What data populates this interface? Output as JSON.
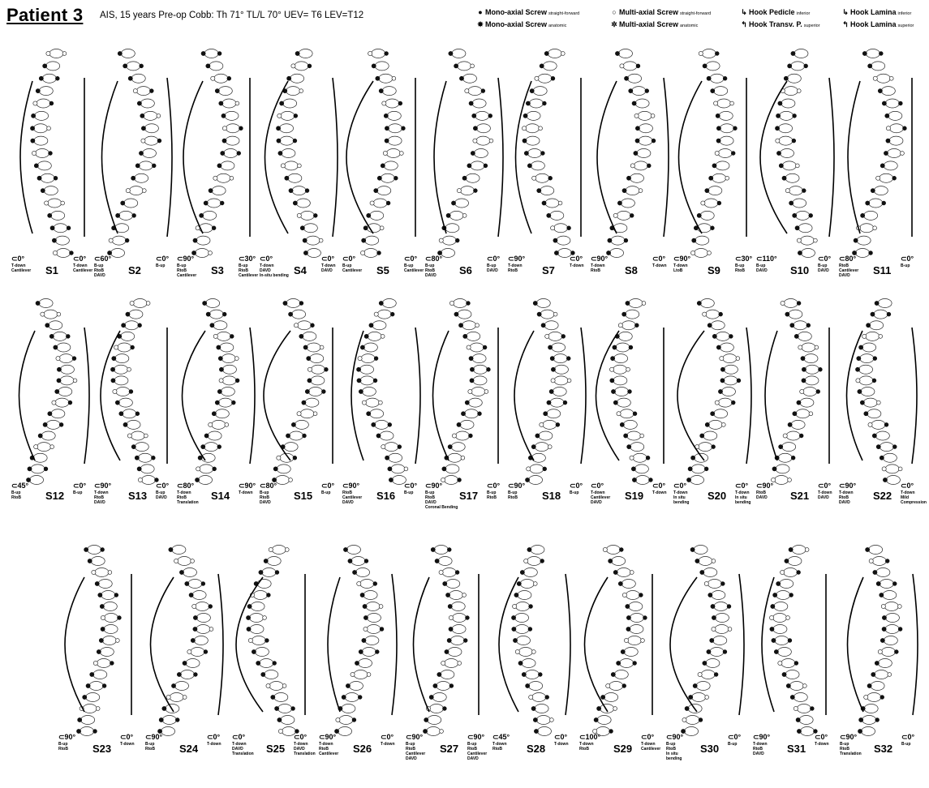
{
  "header": {
    "title": "Patient 3",
    "subtitle": "AIS, 15 years Pre-op Cobb: Th 71° TL/L 70°  UEV= T6  LEV=T12"
  },
  "legend": [
    {
      "icon": "●",
      "icon_name": "mono-axial-screw-straight-icon",
      "label": "Mono-axial Screw",
      "sub": "straight-forward"
    },
    {
      "icon": "○",
      "icon_name": "multi-axial-screw-straight-icon",
      "label": "Multi-axial Screw",
      "sub": "straight-forward"
    },
    {
      "icon": "↳",
      "icon_name": "hook-pedicle-icon",
      "label": "Hook Pedicle",
      "sub": "inferior"
    },
    {
      "icon": "↳",
      "icon_name": "hook-lamina-inferior-icon",
      "label": "Hook Lamina",
      "sub": "inferior"
    },
    {
      "icon": "✸",
      "icon_name": "mono-axial-screw-anatomic-icon",
      "label": "Mono-axial Screw",
      "sub": "anatomic"
    },
    {
      "icon": "✲",
      "icon_name": "multi-axial-screw-anatomic-icon",
      "label": "Multi-axial Screw",
      "sub": "anatomic"
    },
    {
      "icon": "↰",
      "icon_name": "hook-transverse-process-icon",
      "label": "Hook Transv. P.",
      "sub": "superior"
    },
    {
      "icon": "↰",
      "icon_name": "hook-lamina-superior-icon",
      "label": "Hook Lamina",
      "sub": "superior"
    }
  ],
  "strategies": [
    {
      "label": "S1",
      "left": {
        "angle": "0°",
        "moves": [
          "T-down",
          "Cantilever"
        ]
      },
      "right": {
        "angle": "0°",
        "moves": [
          "T-down",
          "Cantilever"
        ]
      }
    },
    {
      "label": "S2",
      "left": {
        "angle": "60°",
        "moves": [
          "B-up",
          "RtoB",
          "DAVD"
        ]
      },
      "right": {
        "angle": "0°",
        "moves": [
          "B-up"
        ]
      }
    },
    {
      "label": "S3",
      "left": {
        "angle": "90°",
        "moves": [
          "B-up",
          "RtoB",
          "Cantilever"
        ]
      },
      "right": {
        "angle": "30°",
        "moves": [
          "B-up",
          "RtoB",
          "Cantilever"
        ]
      }
    },
    {
      "label": "S4",
      "left": {
        "angle": "0°",
        "moves": [
          "T-down",
          "DAVD",
          "In-situ bending"
        ]
      },
      "right": {
        "angle": "0°",
        "moves": [
          "T-down",
          "DAVD"
        ]
      }
    },
    {
      "label": "S5",
      "left": {
        "angle": "0°",
        "moves": [
          "B-up",
          "Cantilever"
        ]
      },
      "right": {
        "angle": "0°",
        "moves": [
          "B-up",
          "Cantilever"
        ]
      }
    },
    {
      "label": "S6",
      "left": {
        "angle": "80°",
        "moves": [
          "B-up",
          "RtoB",
          "DAVD"
        ]
      },
      "right": {
        "angle": "0°",
        "moves": [
          "B-up",
          "DAVD"
        ]
      }
    },
    {
      "label": "S7",
      "left": {
        "angle": "90°",
        "moves": [
          "T-down",
          "RtoB"
        ]
      },
      "right": {
        "angle": "0°",
        "moves": [
          "T-down"
        ]
      }
    },
    {
      "label": "S8",
      "left": {
        "angle": "90°",
        "moves": [
          "T-down",
          "RtoB"
        ]
      },
      "right": {
        "angle": "0°",
        "moves": [
          "T-down"
        ]
      }
    },
    {
      "label": "S9",
      "left": {
        "angle": "90°",
        "moves": [
          "T-down",
          "LtoB"
        ]
      },
      "right": {
        "angle": "30°",
        "moves": [
          "B-up",
          "RtoB"
        ]
      }
    },
    {
      "label": "S10",
      "left": {
        "angle": "110°",
        "moves": [
          "B-up",
          "DAVD"
        ]
      },
      "right": {
        "angle": "0°",
        "moves": [
          "B-up",
          "DAVD"
        ]
      }
    },
    {
      "label": "S11",
      "left": {
        "angle": "80°",
        "moves": [
          "RtoB",
          "Cantilever",
          "DAVD"
        ]
      },
      "right": {
        "angle": "0°",
        "moves": [
          "B-up"
        ]
      }
    },
    {
      "label": "S12",
      "left": {
        "angle": "45°",
        "moves": [
          "B-up",
          "RtoB"
        ]
      },
      "right": {
        "angle": "0°",
        "moves": [
          "B-up"
        ]
      }
    },
    {
      "label": "S13",
      "left": {
        "angle": "90°",
        "moves": [
          "T-down",
          "RtoB",
          "DAVD"
        ]
      },
      "right": {
        "angle": "0°",
        "moves": [
          "B-up",
          "DAVD"
        ]
      }
    },
    {
      "label": "S14",
      "left": {
        "angle": "80°",
        "moves": [
          "T-down",
          "RtoB",
          "Translation"
        ]
      },
      "right": {
        "angle": "90°",
        "moves": [
          "T-down"
        ]
      }
    },
    {
      "label": "S15",
      "left": {
        "angle": "80°",
        "moves": [
          "B-up",
          "RtoB",
          "DAVD"
        ]
      },
      "right": {
        "angle": "0°",
        "moves": [
          "B-up"
        ]
      }
    },
    {
      "label": "S16",
      "left": {
        "angle": "90°",
        "moves": [
          "RtoB",
          "Cantilever",
          "DAVD"
        ]
      },
      "right": {
        "angle": "0°",
        "moves": [
          "B-up"
        ]
      }
    },
    {
      "label": "S17",
      "left": {
        "angle": "90°",
        "moves": [
          "B-up",
          "RtoB",
          "DAVD",
          "Coronal Bending"
        ]
      },
      "right": {
        "angle": "0°",
        "moves": [
          "B-up",
          "RtoB"
        ]
      }
    },
    {
      "label": "S18",
      "left": {
        "angle": "90°",
        "moves": [
          "B-up",
          "RtoB"
        ]
      },
      "right": {
        "angle": "0°",
        "moves": [
          "B-up"
        ]
      }
    },
    {
      "label": "S19",
      "left": {
        "angle": "0°",
        "moves": [
          "T-down",
          "Cantilever",
          "DAVD"
        ]
      },
      "right": {
        "angle": "0°",
        "moves": [
          "T-down"
        ]
      }
    },
    {
      "label": "S20",
      "left": {
        "angle": "0°",
        "moves": [
          "T-down",
          "In situ",
          "bending"
        ]
      },
      "right": {
        "angle": "0°",
        "moves": [
          "T-down",
          "In situ",
          "bending"
        ]
      }
    },
    {
      "label": "S21",
      "left": {
        "angle": "90°",
        "moves": [
          "RtoB",
          "DAVD"
        ]
      },
      "right": {
        "angle": "0°",
        "moves": [
          "T-down",
          "DAVD"
        ]
      }
    },
    {
      "label": "S22",
      "left": {
        "angle": "90°",
        "moves": [
          "T-down",
          "RtoB",
          "DAVD"
        ]
      },
      "right": {
        "angle": "0°",
        "moves": [
          "T-down",
          "Mild",
          "Compression"
        ]
      }
    },
    {
      "label": "S23",
      "left": {
        "angle": "90°",
        "moves": [
          "B-up",
          "RtoB"
        ]
      },
      "right": {
        "angle": "0°",
        "moves": [
          "T-down"
        ]
      }
    },
    {
      "label": "S24",
      "left": {
        "angle": "90°",
        "moves": [
          "B-up",
          "RtoB"
        ]
      },
      "right": {
        "angle": "0°",
        "moves": [
          "T-down"
        ]
      }
    },
    {
      "label": "S25",
      "left": {
        "angle": "0°",
        "moves": [
          "T-down",
          "DAVD",
          "Translation"
        ]
      },
      "right": {
        "angle": "0°",
        "moves": [
          "T-down",
          "DAVD",
          "Translation"
        ]
      }
    },
    {
      "label": "S26",
      "left": {
        "angle": "90°",
        "moves": [
          "T-down",
          "RtoB",
          "Cantilever"
        ]
      },
      "right": {
        "angle": "0°",
        "moves": [
          "T-down"
        ]
      }
    },
    {
      "label": "S27",
      "left": {
        "angle": "90°",
        "moves": [
          "B-up",
          "RtoB",
          "Cantilever",
          "DAVD"
        ]
      },
      "right": {
        "angle": "90°",
        "moves": [
          "B-up",
          "RtoB",
          "Cantilever",
          "DAVD"
        ]
      }
    },
    {
      "label": "S28",
      "left": {
        "angle": "45°",
        "moves": [
          "T-down",
          "RtoB"
        ]
      },
      "right": {
        "angle": "0°",
        "moves": [
          "T-down"
        ]
      }
    },
    {
      "label": "S29",
      "left": {
        "angle": "100°",
        "moves": [
          "T-down",
          "RtoB"
        ]
      },
      "right": {
        "angle": "0°",
        "moves": [
          "T-down",
          "Cantilever"
        ]
      }
    },
    {
      "label": "S30",
      "left": {
        "angle": "90°",
        "moves": [
          "B-up",
          "RtoB",
          "In situ",
          "bending"
        ]
      },
      "right": {
        "angle": "0°",
        "moves": [
          "B-up"
        ]
      }
    },
    {
      "label": "S31",
      "left": {
        "angle": "90°",
        "moves": [
          "T-down",
          "RtoB",
          "DAVD"
        ]
      },
      "right": {
        "angle": "0°",
        "moves": [
          "T-down"
        ]
      }
    },
    {
      "label": "S32",
      "left": {
        "angle": "90°",
        "moves": [
          "B-up",
          "RtoB",
          "Translation"
        ]
      },
      "right": {
        "angle": "0°",
        "moves": [
          "B-up"
        ]
      }
    }
  ]
}
